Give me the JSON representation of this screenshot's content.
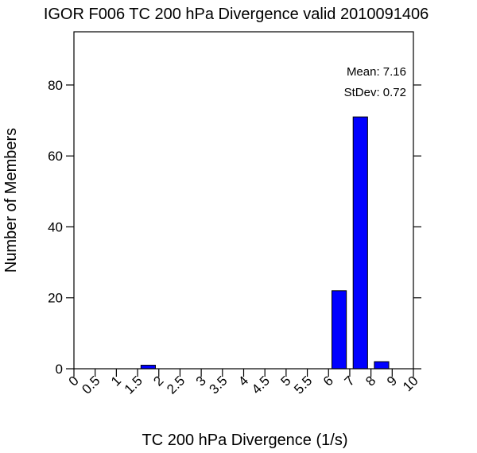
{
  "chart_data": {
    "type": "bar",
    "title": "IGOR F006 TC 200 hPa Divergence valid 2010091406",
    "xlabel": "TC 200 hPa Divergence (1/s)",
    "ylabel": "Number of Members",
    "x_tick_labels": [
      "0",
      "0.5",
      "1",
      "1.5",
      "2",
      "2.5",
      "3",
      "3.5",
      "4",
      "4.5",
      "5",
      "5.5",
      "6",
      "7",
      "8",
      "9",
      "10"
    ],
    "y_ticks": [
      0,
      20,
      40,
      60,
      80
    ],
    "ylim": [
      0,
      95
    ],
    "bars": [
      {
        "bin_index": 3,
        "value": 1
      },
      {
        "bin_index": 12,
        "value": 22
      },
      {
        "bin_index": 13,
        "value": 71
      },
      {
        "bin_index": 14,
        "value": 2
      }
    ],
    "stats": {
      "mean_label": "Mean: 7.16",
      "stdev_label": "StDev: 0.72"
    },
    "colors": {
      "bar_fill": "#0000ff",
      "bar_stroke": "#000000",
      "axis": "#000000"
    },
    "grid": false
  }
}
